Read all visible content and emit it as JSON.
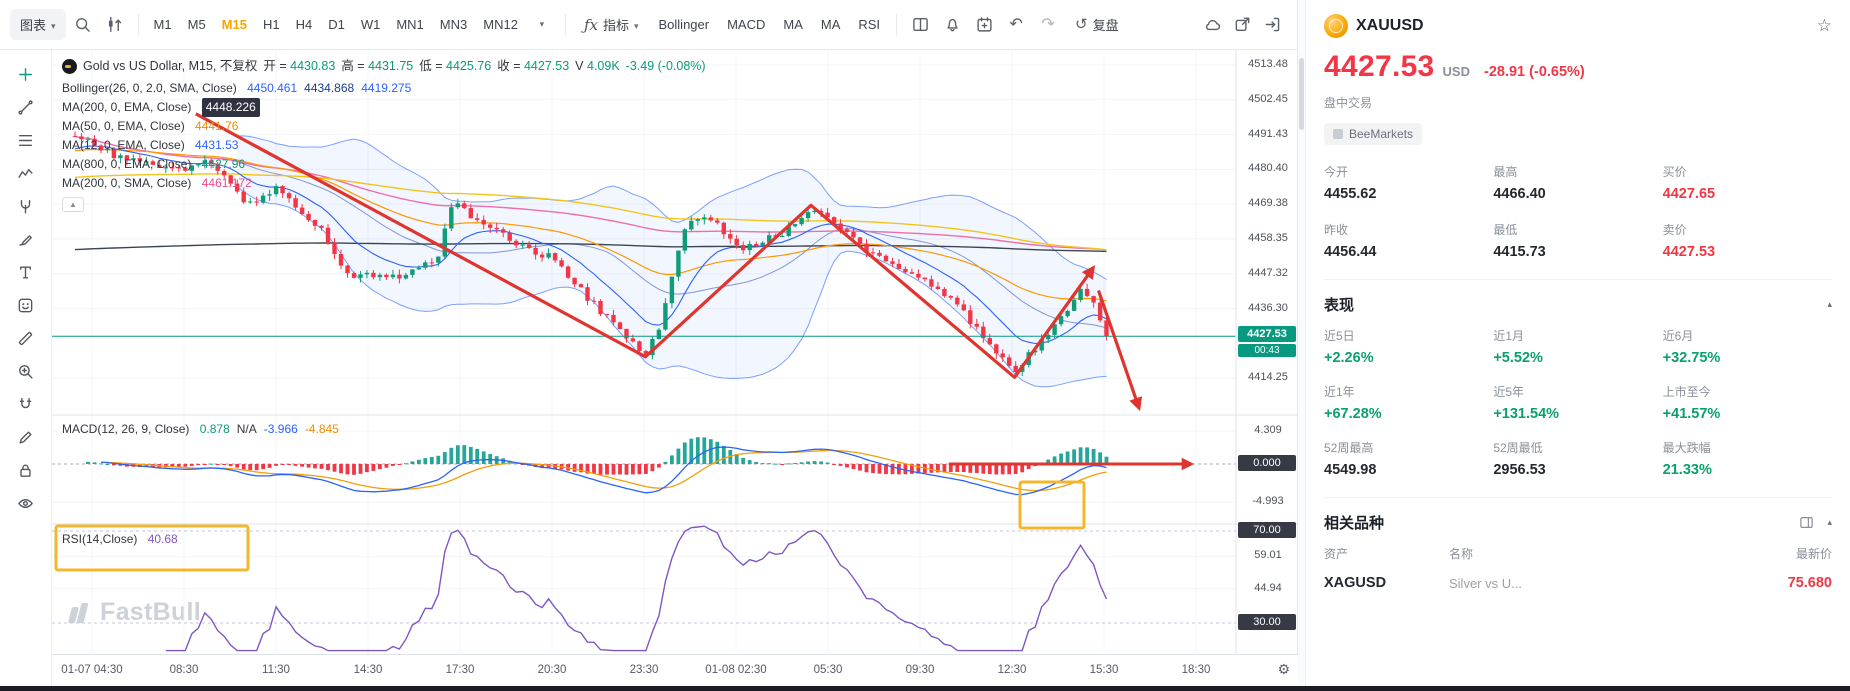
{
  "colors": {
    "up": "#0f9d78",
    "down": "#f23645",
    "accent": "#f7a600",
    "drawing": "#e0342f",
    "highlight": "#f3b72e",
    "badge_green": "#089981",
    "badge_dark": "#363a45",
    "rsi_line": "#7e57c2"
  },
  "toolbar": {
    "chart_menu_label": "图表",
    "timeframes": [
      "M1",
      "M5",
      "M15",
      "H1",
      "H4",
      "D1",
      "W1",
      "MN1",
      "MN3",
      "MN12"
    ],
    "active_timeframe": "M15",
    "indicators_label": "指标",
    "indicator_shortcuts": [
      "Bollinger",
      "MACD",
      "MA",
      "MA",
      "RSI"
    ],
    "replay_label": "复盘"
  },
  "drawing_tools": [
    "add",
    "trend-line",
    "fib-retracement",
    "elliott-wave",
    "pitchfork",
    "brush",
    "text",
    "sticker",
    "ruler",
    "zoom-in",
    "magnet",
    "draw-pen",
    "lock",
    "eye"
  ],
  "legend": {
    "title": "Gold vs US Dollar, M15, 不复权",
    "o_label": "开 =",
    "o": "4430.83",
    "h_label": "高 =",
    "h": "4431.75",
    "l_label": "低 =",
    "l": "4425.76",
    "c_label": "收 =",
    "c": "4427.53",
    "v_label": "V",
    "v": "4.09K",
    "chg": "-3.49 (-0.08%)",
    "rows": [
      {
        "name": "Bollinger(26, 0, 2.0, SMA, Close)",
        "v1": "4450.461",
        "v2": "4434.868",
        "v3": "4419.275"
      },
      {
        "name": "MA(200, 0, EMA, Close)",
        "v1": "4448.226"
      },
      {
        "name": "MA(50, 0, EMA, Close)",
        "v1": "4441.76"
      },
      {
        "name": "MA(12, 0, EMA, Close)",
        "v1": "4431.53"
      },
      {
        "name": "MA(800, 0, EMA, Close)",
        "v1": "4427.96"
      },
      {
        "name": "MA(200, 0, SMA, Close)",
        "v1": "4461.172"
      }
    ],
    "macd": {
      "name": "MACD(12, 26, 9, Close)",
      "v1": "0.878",
      "v2": "N/A",
      "v3": "-3.966",
      "v4": "-4.845"
    },
    "rsi": {
      "name": "RSI(14,Close)",
      "v1": "40.68"
    }
  },
  "axes": {
    "price": [
      "4513.48",
      "4502.45",
      "4491.43",
      "4480.40",
      "4469.38",
      "4458.35",
      "4447.32",
      "4436.30",
      "4414.25"
    ],
    "price_badge": {
      "value": "4427.53",
      "countdown": "00:43"
    },
    "macd": [
      "4.309",
      "0.000",
      "-4.993"
    ],
    "rsi": [
      "70.00",
      "59.01",
      "44.94",
      "30.00"
    ],
    "time": [
      "01-07 04:30",
      "08:30",
      "11:30",
      "14:30",
      "17:30",
      "20:30",
      "23:30",
      "01-08 02:30",
      "05:30",
      "09:30",
      "12:30",
      "15:30",
      "18:30"
    ]
  },
  "watermark": "FastBull",
  "chart_data": {
    "type": "candlestick",
    "symbol": "XAUUSD",
    "interval": "M15",
    "visible_price_range": [
      4414.25,
      4513.48
    ],
    "current_price": 4427.53,
    "price_path": [
      [
        0.02,
        4491
      ],
      [
        0.06,
        4484
      ],
      [
        0.115,
        4480
      ],
      [
        0.14,
        4483
      ],
      [
        0.17,
        4469
      ],
      [
        0.195,
        4475
      ],
      [
        0.235,
        4461
      ],
      [
        0.255,
        4447
      ],
      [
        0.3,
        4446
      ],
      [
        0.335,
        4452
      ],
      [
        0.35,
        4472
      ],
      [
        0.365,
        4465
      ],
      [
        0.4,
        4458
      ],
      [
        0.436,
        4452
      ],
      [
        0.47,
        4438
      ],
      [
        0.5,
        4427
      ],
      [
        0.516,
        4422
      ],
      [
        0.53,
        4432
      ],
      [
        0.55,
        4462
      ],
      [
        0.57,
        4466
      ],
      [
        0.596,
        4455
      ],
      [
        0.62,
        4458
      ],
      [
        0.645,
        4462
      ],
      [
        0.66,
        4468
      ],
      [
        0.676,
        4464
      ],
      [
        0.7,
        4457
      ],
      [
        0.73,
        4450
      ],
      [
        0.756,
        4446
      ],
      [
        0.78,
        4440
      ],
      [
        0.81,
        4428
      ],
      [
        0.837,
        4416
      ],
      [
        0.855,
        4424
      ],
      [
        0.875,
        4433
      ],
      [
        0.895,
        4442
      ],
      [
        0.905,
        4438
      ],
      [
        0.917,
        4427.5
      ]
    ],
    "annotations": {
      "zigzag": [
        [
          0.125,
          4498
        ],
        [
          0.516,
          4421
        ],
        [
          0.66,
          4469
        ],
        [
          0.837,
          4414.5
        ],
        [
          0.905,
          4449
        ]
      ],
      "down_arrow": [
        [
          0.91,
          4442
        ],
        [
          0.945,
          4405
        ]
      ],
      "macd_arrow_level": 0,
      "macd_arrow_t": [
        0.78,
        0.99
      ],
      "highlight_boxes": [
        "macd-crossover",
        "rsi-legend"
      ]
    }
  },
  "quote": {
    "symbol": "XAUUSD",
    "price": "4427.53",
    "currency": "USD",
    "change": "-28.91",
    "change_pct": "(-0.65%)",
    "session": "盘中交易",
    "broker": "BeeMarkets",
    "stats": [
      {
        "label": "今开",
        "value": "4455.62"
      },
      {
        "label": "最高",
        "value": "4466.40"
      },
      {
        "label": "买价",
        "value": "4427.65"
      },
      {
        "label": "昨收",
        "value": "4456.44"
      },
      {
        "label": "最低",
        "value": "4415.73"
      },
      {
        "label": "卖价",
        "value": "4427.53"
      }
    ],
    "performance": {
      "title": "表现",
      "items": [
        {
          "label": "近5日",
          "value": "+2.26%"
        },
        {
          "label": "近1月",
          "value": "+5.52%"
        },
        {
          "label": "近6月",
          "value": "+32.75%"
        },
        {
          "label": "近1年",
          "value": "+67.28%"
        },
        {
          "label": "近5年",
          "value": "+131.54%"
        },
        {
          "label": "上市至今",
          "value": "+41.57%"
        },
        {
          "label": "52周最高",
          "value": "4549.98"
        },
        {
          "label": "52周最低",
          "value": "2956.53"
        },
        {
          "label": "最大跌幅",
          "value": "21.33%"
        }
      ]
    },
    "related": {
      "title": "相关品种",
      "columns": [
        "资产",
        "名称",
        "最新价"
      ],
      "rows": [
        {
          "asset": "XAGUSD",
          "name": "Silver vs U...",
          "price": "75.680"
        }
      ]
    }
  }
}
